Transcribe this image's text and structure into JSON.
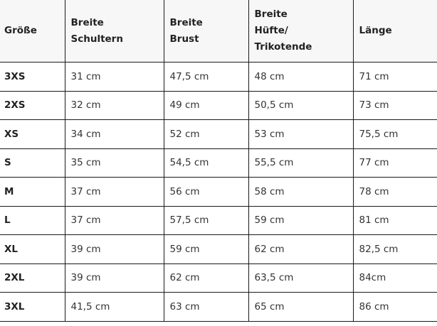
{
  "table": {
    "headers": [
      "Größe",
      "Breite Schultern",
      "Breite Brust",
      "Breite Hüfte/ Trikotende",
      "Länge"
    ],
    "header_lines": [
      [
        "Größe"
      ],
      [
        "Breite",
        "Schultern"
      ],
      [
        "Breite",
        "Brust"
      ],
      [
        "Breite",
        "Hüfte/",
        "Trikotende"
      ],
      [
        "Länge"
      ]
    ],
    "rows": [
      [
        "3XS",
        "31 cm",
        "47,5 cm",
        "48 cm",
        "71 cm"
      ],
      [
        "2XS",
        "32 cm",
        "49 cm",
        "50,5 cm",
        "73 cm"
      ],
      [
        "XS",
        "34 cm",
        "52 cm",
        "53 cm",
        "75,5 cm"
      ],
      [
        "S",
        "35 cm",
        "54,5 cm",
        "55,5 cm",
        "77 cm"
      ],
      [
        "M",
        "37 cm",
        "56 cm",
        "58 cm",
        "78 cm"
      ],
      [
        "L",
        "37 cm",
        "57,5 cm",
        "59 cm",
        "81 cm"
      ],
      [
        "XL",
        "39 cm",
        "59 cm",
        "62 cm",
        "82,5 cm"
      ],
      [
        "2XL",
        "39 cm",
        "62 cm",
        "63,5 cm",
        "84cm"
      ],
      [
        "3XL",
        "41,5 cm",
        "63 cm",
        "65 cm",
        "86 cm"
      ]
    ]
  }
}
